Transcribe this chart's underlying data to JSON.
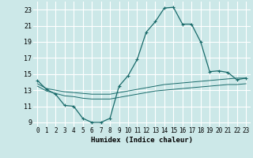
{
  "xlabel": "Humidex (Indice chaleur)",
  "bg_color": "#cce8e8",
  "grid_color": "#ffffff",
  "line_color": "#1a6b6b",
  "xlim": [
    -0.5,
    23.5
  ],
  "ylim": [
    8.5,
    24.0
  ],
  "yticks": [
    9,
    11,
    13,
    15,
    17,
    19,
    21,
    23
  ],
  "xticks": [
    0,
    1,
    2,
    3,
    4,
    5,
    6,
    7,
    8,
    9,
    10,
    11,
    12,
    13,
    14,
    15,
    16,
    17,
    18,
    19,
    20,
    21,
    22,
    23
  ],
  "line1_x": [
    0,
    1,
    2,
    3,
    4,
    5,
    6,
    7,
    8,
    9,
    10,
    11,
    12,
    13,
    14,
    15,
    16,
    17,
    18,
    19,
    20,
    21,
    22,
    23
  ],
  "line1_y": [
    14.2,
    13.1,
    12.5,
    11.1,
    11.0,
    9.5,
    9.0,
    9.0,
    9.5,
    13.5,
    14.8,
    16.8,
    20.2,
    21.5,
    23.2,
    23.3,
    21.2,
    21.2,
    19.0,
    15.3,
    15.4,
    15.2,
    14.3,
    14.5
  ],
  "line2_x": [
    0,
    1,
    2,
    3,
    4,
    5,
    6,
    7,
    8,
    9,
    10,
    11,
    12,
    13,
    14,
    15,
    16,
    17,
    18,
    19,
    20,
    21,
    22,
    23
  ],
  "line2_y": [
    13.8,
    13.2,
    13.0,
    12.8,
    12.7,
    12.6,
    12.5,
    12.5,
    12.5,
    12.7,
    12.9,
    13.1,
    13.3,
    13.5,
    13.7,
    13.8,
    13.9,
    14.0,
    14.1,
    14.2,
    14.3,
    14.4,
    14.5,
    14.5
  ],
  "line3_x": [
    0,
    1,
    2,
    3,
    4,
    5,
    6,
    7,
    8,
    9,
    10,
    11,
    12,
    13,
    14,
    15,
    16,
    17,
    18,
    19,
    20,
    21,
    22,
    23
  ],
  "line3_y": [
    13.5,
    12.9,
    12.6,
    12.3,
    12.2,
    12.0,
    11.9,
    11.9,
    11.9,
    12.1,
    12.3,
    12.5,
    12.7,
    12.9,
    13.0,
    13.1,
    13.2,
    13.3,
    13.4,
    13.5,
    13.6,
    13.7,
    13.7,
    13.8
  ]
}
